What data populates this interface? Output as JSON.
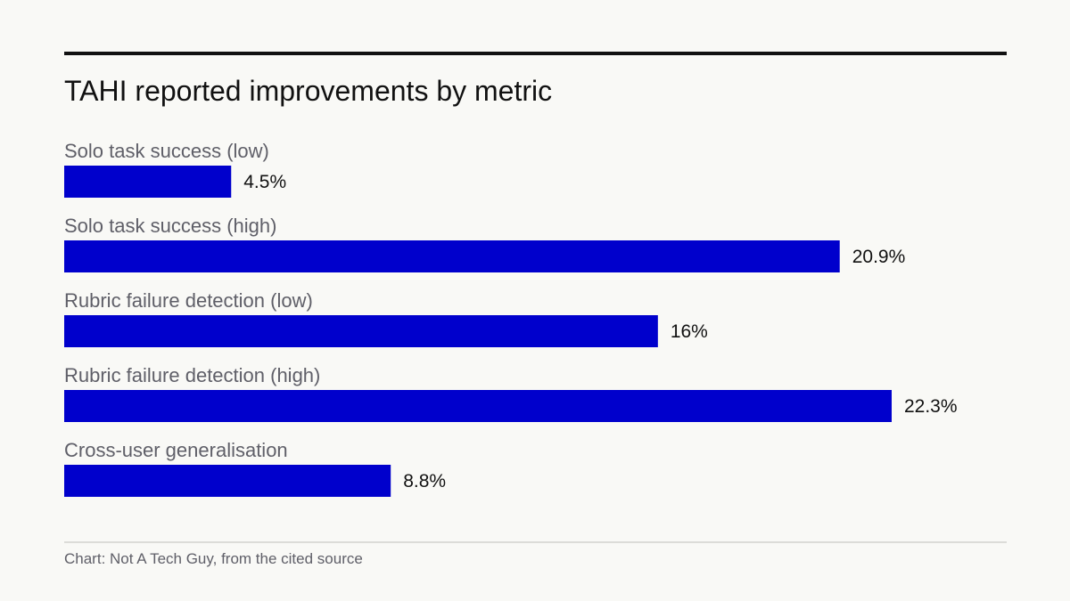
{
  "chart_data": {
    "type": "bar",
    "orientation": "horizontal",
    "title": "TAHI reported improvements by metric",
    "categories": [
      "Solo task success (low)",
      "Solo task success (high)",
      "Rubric failure detection (low)",
      "Rubric failure detection (high)",
      "Cross-user generalisation"
    ],
    "values": [
      4.5,
      20.9,
      16,
      22.3,
      8.8
    ],
    "value_labels": [
      "4.5%",
      "20.9%",
      "16%",
      "22.3%",
      "8.8%"
    ],
    "xlim": [
      0,
      25.4
    ],
    "bar_color": "#0000cc",
    "grid": false
  },
  "footer": {
    "source": "Chart: Not A Tech Guy, from the cited source"
  }
}
